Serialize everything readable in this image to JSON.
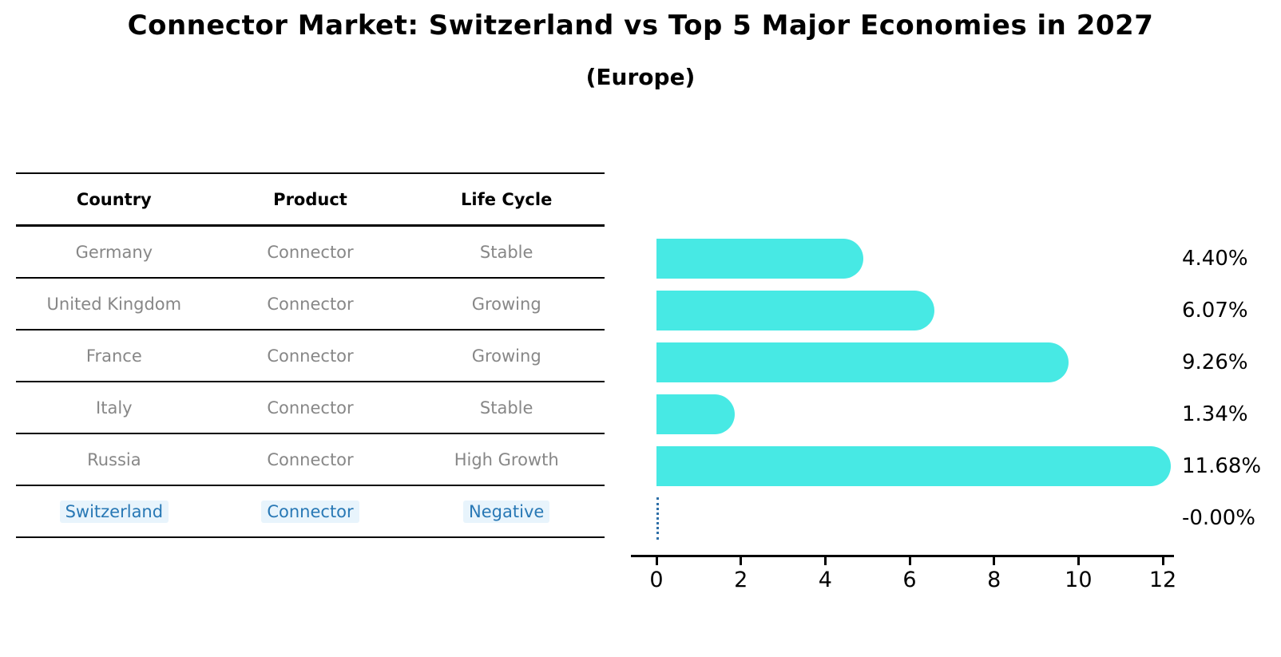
{
  "title": "Connector Market: Switzerland vs Top 5 Major Economies in 2027",
  "subtitle": "(Europe)",
  "table": {
    "headers": [
      "Country",
      "Product",
      "Life Cycle"
    ],
    "rows": [
      {
        "country": "Germany",
        "product": "Connector",
        "life_cycle": "Stable",
        "highlight": false
      },
      {
        "country": "United Kingdom",
        "product": "Connector",
        "life_cycle": "Growing",
        "highlight": false
      },
      {
        "country": "France",
        "product": "Connector",
        "life_cycle": "Growing",
        "highlight": false
      },
      {
        "country": "Italy",
        "product": "Connector",
        "life_cycle": "Stable",
        "highlight": false
      },
      {
        "country": "Russia",
        "product": "Connector",
        "life_cycle": "High Growth",
        "highlight": false
      },
      {
        "country": "Switzerland",
        "product": "Connector",
        "life_cycle": "Negative",
        "highlight": true
      }
    ]
  },
  "chart_data": {
    "type": "bar",
    "orientation": "horizontal",
    "title": "Connector Market: Switzerland vs Top 5 Major Economies in 2027",
    "subtitle": "(Europe)",
    "categories": [
      "Germany",
      "United Kingdom",
      "France",
      "Italy",
      "Russia",
      "Switzerland"
    ],
    "values": [
      4.4,
      6.07,
      9.26,
      1.34,
      11.68,
      -0.0
    ],
    "value_labels": [
      "4.40%",
      "6.07%",
      "9.26%",
      "1.34%",
      "11.68%",
      "-0.00%"
    ],
    "xlim": [
      0,
      12
    ],
    "x_ticks": [
      0,
      2,
      4,
      6,
      8,
      10,
      12
    ],
    "grid": false,
    "legend": false,
    "xlabel": "",
    "ylabel": ""
  },
  "colors": {
    "bar": "#47E9E4",
    "highlight_text": "#2878B5",
    "highlight_bg": "#E8F4FC",
    "zero_line": "#2F6FA7",
    "table_text": "#878787",
    "line": "#000000"
  }
}
